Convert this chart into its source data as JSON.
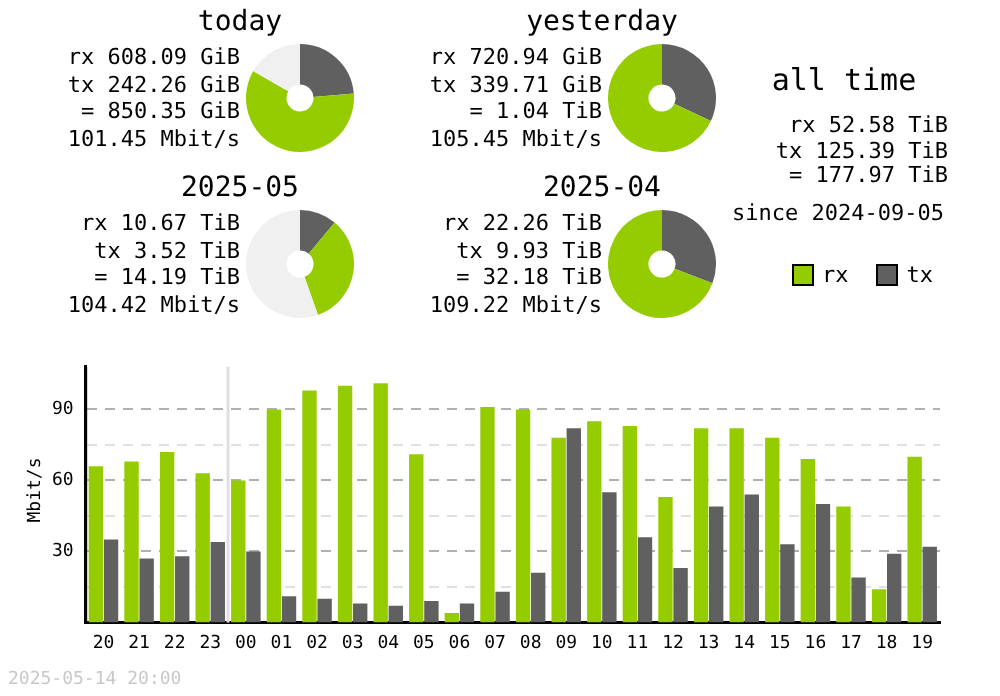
{
  "chart_data": [
    {
      "type": "donut",
      "title": "today",
      "categories": [
        null,
        null,
        null
      ],
      "values": [
        23.7,
        59.6,
        16.7
      ],
      "colors": [
        "#606060",
        "#94cc00",
        "#f0f0f0"
      ],
      "annotations": [
        "rx 608.09 GiB",
        "tx 242.26 GiB",
        "= 850.35 GiB",
        "101.45 Mbit/s"
      ]
    },
    {
      "type": "donut",
      "title": "yesterday",
      "categories": [
        null,
        null
      ],
      "values": [
        32,
        68
      ],
      "colors": [
        "#606060",
        "#94cc00"
      ],
      "annotations": [
        "rx 720.94 GiB",
        "tx 339.71 GiB",
        "= 1.04 TiB",
        "105.45 Mbit/s"
      ]
    },
    {
      "type": "other",
      "title": "all time",
      "annotations": [
        "rx 52.58 TiB",
        "tx 125.39 TiB",
        "= 177.97 TiB",
        "since 2024-09-05"
      ]
    },
    {
      "type": "donut",
      "title": "2025-05",
      "categories": [
        null,
        null,
        null
      ],
      "values": [
        11.1,
        33.5,
        55.4
      ],
      "colors": [
        "#606060",
        "#94cc00",
        "#f0f0f0"
      ],
      "annotations": [
        "rx 10.67 TiB",
        "tx 3.52 TiB",
        "= 14.19 TiB",
        "104.42 Mbit/s"
      ]
    },
    {
      "type": "donut",
      "title": "2025-04",
      "categories": [
        null,
        null
      ],
      "values": [
        30.8,
        69.2
      ],
      "colors": [
        "#606060",
        "#94cc00"
      ],
      "annotations": [
        "rx 22.26 TiB",
        "tx 9.93 TiB",
        "= 32.18 TiB",
        "109.22 Mbit/s"
      ]
    },
    {
      "type": "bar",
      "ylabel": "Mbit/s",
      "categories": [
        "20",
        "21",
        "22",
        "23",
        "00",
        "01",
        "02",
        "03",
        "04",
        "05",
        "06",
        "07",
        "08",
        "09",
        "10",
        "11",
        "12",
        "13",
        "14",
        "15",
        "16",
        "17",
        "18",
        "19"
      ],
      "series": [
        {
          "name": "rx",
          "color": "#94cc00",
          "values": [
            66,
            68,
            72,
            63,
            60,
            90,
            98,
            100,
            101,
            71,
            4,
            91,
            90,
            78,
            85,
            83,
            53,
            82,
            82,
            78,
            69,
            49,
            14,
            70
          ]
        },
        {
          "name": "tx",
          "color": "#606060",
          "values": [
            35,
            27,
            28,
            34,
            30,
            11,
            10,
            8,
            7,
            9,
            8,
            13,
            21,
            82,
            55,
            36,
            23,
            49,
            54,
            33,
            50,
            19,
            29,
            32
          ]
        }
      ],
      "ylim": [
        0,
        108
      ],
      "yticks": [
        {
          "value": 15,
          "label": null
        },
        30,
        {
          "value": 45,
          "label": null
        },
        60,
        {
          "value": 75,
          "label": null
        },
        90
      ],
      "grid": "y",
      "legend": "top right",
      "ref_lines": [
        {
          "axis": "x",
          "value": "00",
          "color": "#e0e0e0"
        }
      ],
      "annotations": [
        "2025-05-14 20:00"
      ]
    }
  ]
}
